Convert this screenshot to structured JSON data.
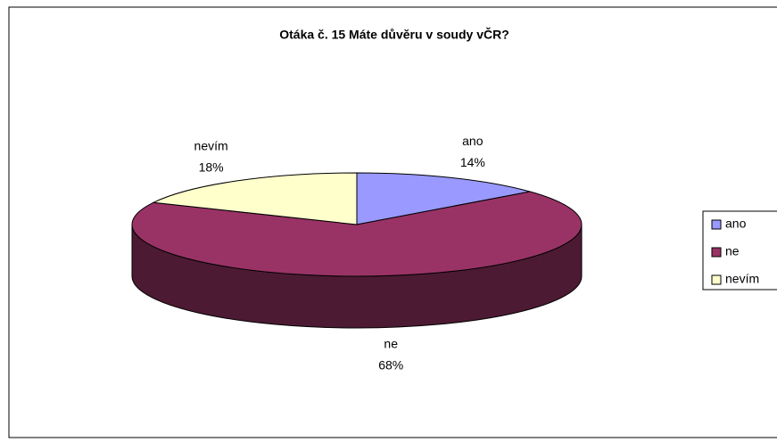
{
  "chart_data": {
    "type": "pie",
    "title": "Otáka č. 15 Máte důvěru v soudy vČR?",
    "categories": [
      "ano",
      "ne",
      "nevím"
    ],
    "values": [
      14,
      68,
      18
    ],
    "value_labels": [
      "14%",
      "68%",
      "18%"
    ],
    "colors": [
      "#9999ff",
      "#993366",
      "#ffffcc"
    ],
    "legend": "right"
  }
}
